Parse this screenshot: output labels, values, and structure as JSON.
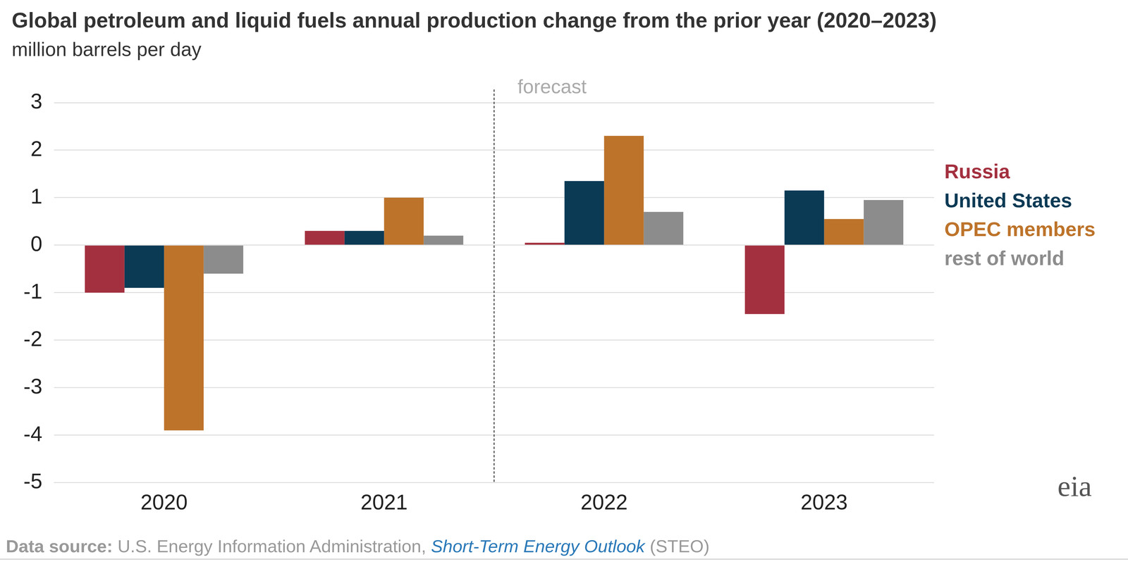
{
  "chart_data": {
    "type": "bar",
    "title": "Global petroleum and liquid fuels annual production change from the prior year (2020–2023)",
    "subtitle": "million barrels per day",
    "categories": [
      "2020",
      "2021",
      "2022",
      "2023"
    ],
    "series": [
      {
        "name": "Russia",
        "color": "#a3303f",
        "values": [
          -1.0,
          0.3,
          0.05,
          -1.45
        ]
      },
      {
        "name": "United States",
        "color": "#0b3a55",
        "values": [
          -0.9,
          0.3,
          1.35,
          1.15
        ]
      },
      {
        "name": "OPEC members",
        "color": "#bd732a",
        "values": [
          -3.9,
          1.0,
          2.3,
          0.55
        ]
      },
      {
        "name": "rest of world",
        "color": "#8c8c8c",
        "values": [
          -0.6,
          0.2,
          0.7,
          0.95
        ]
      }
    ],
    "ylim": [
      -5,
      3
    ],
    "yticks": [
      -5,
      -4,
      -3,
      -2,
      -1,
      0,
      1,
      2,
      3
    ],
    "grid": true,
    "legend": "right",
    "annotations": [
      {
        "text": "forecast",
        "start": "2022"
      }
    ],
    "source": {
      "label": "Data source:",
      "text": "U.S. Energy Information Administration,",
      "link": "Short-Term Energy Outlook",
      "suffix": "(STEO)"
    },
    "logo": "eia"
  }
}
